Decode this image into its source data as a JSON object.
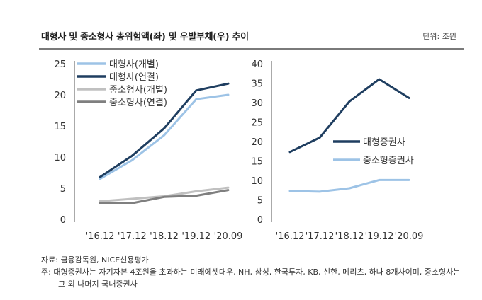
{
  "header": {
    "title": "대형사 및 중소형사 총위험액(좌) 및 우발부채(우) 추이",
    "unit": "단위: 조원"
  },
  "footer": {
    "source": "자료: 금융감독원, NICE신용평가",
    "note_line1": "주: 대형증권사는 자기자본 4조원을 초과하는 미래에셋대우, NH, 삼성, 한국투자, KB, 신한, 메리츠, 하나 8개사이며, 중소형사는",
    "note_line2": "그 외 나머지 국내증권사"
  },
  "chart_data": [
    {
      "type": "line",
      "categories": [
        "'16.12",
        "'17.12",
        "'18.12",
        "'19.12",
        "'20.09"
      ],
      "ylim": [
        0,
        25
      ],
      "yticks": [
        "0",
        "5",
        "10",
        "15",
        "20",
        "25"
      ],
      "grid": false,
      "legend_position": "top-left",
      "series": [
        {
          "name": "대형사(개별)",
          "color": "#9dc3e6",
          "values": [
            6.5,
            9.5,
            13.5,
            19.3,
            20.0
          ]
        },
        {
          "name": "대형사(연결)",
          "color": "#1f3e60",
          "values": [
            6.8,
            10.2,
            14.6,
            20.7,
            21.8
          ]
        },
        {
          "name": "중소형사(개별)",
          "color": "#c0c0c0",
          "values": [
            2.9,
            3.3,
            3.7,
            4.5,
            5.1
          ]
        },
        {
          "name": "중소형사(연결)",
          "color": "#7f7f7f",
          "values": [
            2.6,
            2.6,
            3.6,
            3.8,
            4.7
          ]
        }
      ]
    },
    {
      "type": "line",
      "categories": [
        "'16.12",
        "'17.12",
        "'18.12",
        "'19.12",
        "'20.09"
      ],
      "ylim": [
        0,
        40
      ],
      "yticks": [
        "0",
        "5",
        "10",
        "15",
        "20",
        "25",
        "30",
        "35",
        "40"
      ],
      "grid": false,
      "legend_position": "center-right",
      "series": [
        {
          "name": "대형증권사",
          "color": "#1f3e60",
          "values": [
            17.3,
            21.0,
            30.3,
            36.0,
            31.2
          ]
        },
        {
          "name": "중소형증권사",
          "color": "#9dc3e6",
          "values": [
            7.3,
            7.1,
            8.0,
            10.1,
            10.1
          ]
        }
      ]
    }
  ]
}
